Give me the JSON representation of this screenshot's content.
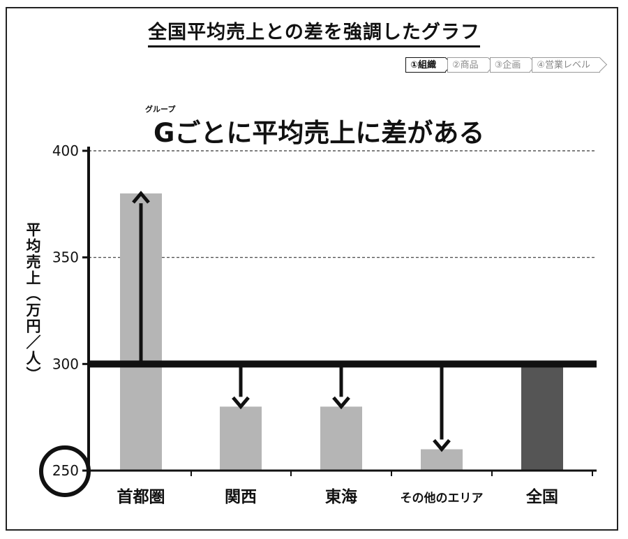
{
  "header": {
    "title": "全国平均売上との差を強調したグラフ"
  },
  "breadcrumb": [
    {
      "label": "①組織",
      "active": true
    },
    {
      "label": "②商品",
      "active": false
    },
    {
      "label": "③企画",
      "active": false
    },
    {
      "label": "④営業レベル",
      "active": false
    }
  ],
  "chart_data": {
    "type": "bar",
    "title": "Gごとに平均売上に差がある",
    "title_ruby": "グループ",
    "ylabel": "平均売上（万円／人）",
    "categories": [
      "首都圏",
      "関西",
      "東海",
      "その他のエリア",
      "全国"
    ],
    "values": [
      380,
      280,
      280,
      260,
      300
    ],
    "reference_value": 300,
    "ylim": [
      250,
      400
    ],
    "yticks": [
      250,
      300,
      350,
      400
    ],
    "grid": "dashed horizontal",
    "colors": {
      "regions": "#b5b5b5",
      "national": "#555555",
      "axis": "#111111"
    },
    "annotations": [
      "arrows from 300 baseline to each regional bar value",
      "circle around 250 axis start"
    ]
  }
}
